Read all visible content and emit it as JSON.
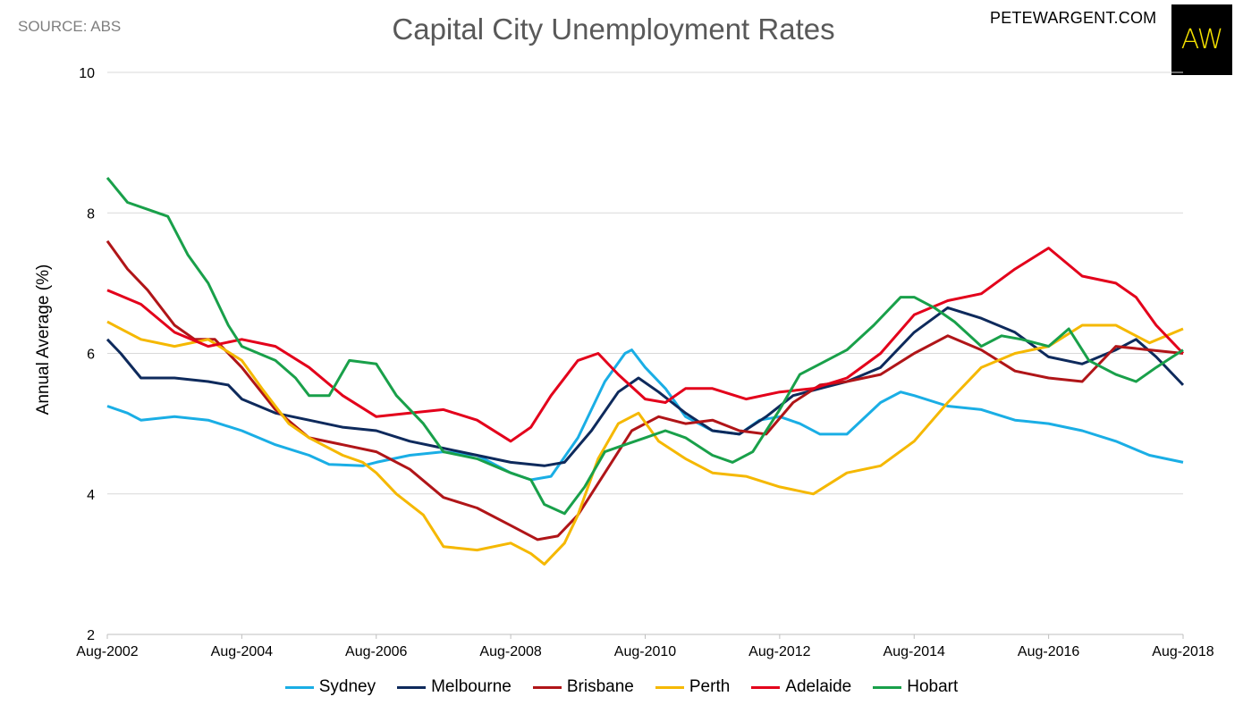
{
  "header": {
    "source": "SOURCE: ABS",
    "title": "Capital City Unemployment Rates",
    "site": "PETEWARGENT.COM",
    "logo_text": "AW"
  },
  "chart_data": {
    "type": "line",
    "title": "Capital City Unemployment Rates",
    "ylabel": "Annual Average (%)",
    "xlabel": "",
    "ylim": [
      2,
      10
    ],
    "yticks": [
      2,
      4,
      6,
      8,
      10
    ],
    "xlim": [
      0,
      16
    ],
    "x_tick_labels": [
      "Aug-2002",
      "Aug-2004",
      "Aug-2006",
      "Aug-2008",
      "Aug-2010",
      "Aug-2012",
      "Aug-2014",
      "Aug-2016",
      "Aug-2018"
    ],
    "x_tick_years": [
      0,
      2,
      4,
      6,
      8,
      10,
      12,
      14,
      16
    ],
    "grid": true,
    "legend_position": "bottom",
    "x_unit_note": "years since Aug-2002",
    "series": [
      {
        "name": "Sydney",
        "color": "#1aaee5",
        "points": [
          [
            0,
            5.25
          ],
          [
            0.3,
            5.15
          ],
          [
            0.5,
            5.05
          ],
          [
            1,
            5.1
          ],
          [
            1.5,
            5.05
          ],
          [
            2,
            4.9
          ],
          [
            2.5,
            4.7
          ],
          [
            3,
            4.55
          ],
          [
            3.3,
            4.42
          ],
          [
            3.8,
            4.4
          ],
          [
            4,
            4.45
          ],
          [
            4.5,
            4.55
          ],
          [
            5,
            4.6
          ],
          [
            5.5,
            4.55
          ],
          [
            6,
            4.3
          ],
          [
            6.3,
            4.2
          ],
          [
            6.6,
            4.25
          ],
          [
            7,
            4.8
          ],
          [
            7.4,
            5.6
          ],
          [
            7.7,
            6.0
          ],
          [
            7.8,
            6.05
          ],
          [
            8,
            5.8
          ],
          [
            8.3,
            5.5
          ],
          [
            8.6,
            5.1
          ],
          [
            9,
            4.9
          ],
          [
            9.4,
            4.85
          ],
          [
            9.7,
            5.05
          ],
          [
            10,
            5.1
          ],
          [
            10.3,
            5.0
          ],
          [
            10.6,
            4.85
          ],
          [
            11,
            4.85
          ],
          [
            11.5,
            5.3
          ],
          [
            11.8,
            5.45
          ],
          [
            12,
            5.4
          ],
          [
            12.5,
            5.25
          ],
          [
            13,
            5.2
          ],
          [
            13.5,
            5.05
          ],
          [
            14,
            5.0
          ],
          [
            14.5,
            4.9
          ],
          [
            15,
            4.75
          ],
          [
            15.5,
            4.55
          ],
          [
            16,
            4.45
          ]
        ]
      },
      {
        "name": "Melbourne",
        "color": "#0e2a5c",
        "points": [
          [
            0,
            6.2
          ],
          [
            0.2,
            6.0
          ],
          [
            0.5,
            5.65
          ],
          [
            1,
            5.65
          ],
          [
            1.5,
            5.6
          ],
          [
            1.8,
            5.55
          ],
          [
            2,
            5.35
          ],
          [
            2.5,
            5.15
          ],
          [
            3,
            5.05
          ],
          [
            3.5,
            4.95
          ],
          [
            4,
            4.9
          ],
          [
            4.5,
            4.75
          ],
          [
            5,
            4.65
          ],
          [
            5.5,
            4.55
          ],
          [
            6,
            4.45
          ],
          [
            6.5,
            4.4
          ],
          [
            6.8,
            4.45
          ],
          [
            7.2,
            4.9
          ],
          [
            7.6,
            5.45
          ],
          [
            7.9,
            5.65
          ],
          [
            8.2,
            5.45
          ],
          [
            8.6,
            5.15
          ],
          [
            9,
            4.9
          ],
          [
            9.4,
            4.85
          ],
          [
            9.8,
            5.1
          ],
          [
            10.2,
            5.4
          ],
          [
            10.6,
            5.5
          ],
          [
            11,
            5.6
          ],
          [
            11.5,
            5.8
          ],
          [
            12,
            6.3
          ],
          [
            12.5,
            6.65
          ],
          [
            13,
            6.5
          ],
          [
            13.5,
            6.3
          ],
          [
            14,
            5.95
          ],
          [
            14.5,
            5.85
          ],
          [
            15,
            6.05
          ],
          [
            15.3,
            6.2
          ],
          [
            15.6,
            5.95
          ],
          [
            16,
            5.55
          ]
        ]
      },
      {
        "name": "Brisbane",
        "color": "#b01518",
        "points": [
          [
            0,
            7.6
          ],
          [
            0.3,
            7.2
          ],
          [
            0.6,
            6.9
          ],
          [
            1,
            6.4
          ],
          [
            1.3,
            6.2
          ],
          [
            1.6,
            6.2
          ],
          [
            2,
            5.8
          ],
          [
            2.5,
            5.2
          ],
          [
            3,
            4.8
          ],
          [
            3.5,
            4.7
          ],
          [
            4,
            4.6
          ],
          [
            4.5,
            4.35
          ],
          [
            5,
            3.95
          ],
          [
            5.5,
            3.8
          ],
          [
            6,
            3.55
          ],
          [
            6.4,
            3.35
          ],
          [
            6.7,
            3.4
          ],
          [
            7,
            3.7
          ],
          [
            7.4,
            4.3
          ],
          [
            7.8,
            4.9
          ],
          [
            8.2,
            5.1
          ],
          [
            8.6,
            5.0
          ],
          [
            9,
            5.05
          ],
          [
            9.4,
            4.9
          ],
          [
            9.8,
            4.85
          ],
          [
            10.2,
            5.3
          ],
          [
            10.6,
            5.55
          ],
          [
            11,
            5.6
          ],
          [
            11.5,
            5.7
          ],
          [
            12,
            6.0
          ],
          [
            12.5,
            6.25
          ],
          [
            13,
            6.05
          ],
          [
            13.5,
            5.75
          ],
          [
            14,
            5.65
          ],
          [
            14.5,
            5.6
          ],
          [
            15,
            6.1
          ],
          [
            15.5,
            6.05
          ],
          [
            16,
            6.0
          ]
        ]
      },
      {
        "name": "Perth",
        "color": "#f5b800",
        "points": [
          [
            0,
            6.45
          ],
          [
            0.5,
            6.2
          ],
          [
            1,
            6.1
          ],
          [
            1.5,
            6.2
          ],
          [
            2,
            5.9
          ],
          [
            2.3,
            5.5
          ],
          [
            2.7,
            5.0
          ],
          [
            3,
            4.8
          ],
          [
            3.5,
            4.55
          ],
          [
            3.8,
            4.45
          ],
          [
            4,
            4.3
          ],
          [
            4.3,
            4.0
          ],
          [
            4.7,
            3.7
          ],
          [
            5,
            3.25
          ],
          [
            5.5,
            3.2
          ],
          [
            6,
            3.3
          ],
          [
            6.3,
            3.15
          ],
          [
            6.5,
            3.0
          ],
          [
            6.8,
            3.3
          ],
          [
            7,
            3.7
          ],
          [
            7.3,
            4.5
          ],
          [
            7.6,
            5.0
          ],
          [
            7.9,
            5.15
          ],
          [
            8.2,
            4.75
          ],
          [
            8.6,
            4.5
          ],
          [
            9,
            4.3
          ],
          [
            9.5,
            4.25
          ],
          [
            10,
            4.1
          ],
          [
            10.5,
            4.0
          ],
          [
            11,
            4.3
          ],
          [
            11.5,
            4.4
          ],
          [
            12,
            4.75
          ],
          [
            12.5,
            5.3
          ],
          [
            13,
            5.8
          ],
          [
            13.5,
            6.0
          ],
          [
            14,
            6.1
          ],
          [
            14.5,
            6.4
          ],
          [
            15,
            6.4
          ],
          [
            15.5,
            6.15
          ],
          [
            16,
            6.35
          ]
        ]
      },
      {
        "name": "Adelaide",
        "color": "#e3001b",
        "points": [
          [
            0,
            6.9
          ],
          [
            0.5,
            6.7
          ],
          [
            1,
            6.3
          ],
          [
            1.5,
            6.1
          ],
          [
            2,
            6.2
          ],
          [
            2.5,
            6.1
          ],
          [
            3,
            5.8
          ],
          [
            3.5,
            5.4
          ],
          [
            4,
            5.1
          ],
          [
            4.5,
            5.15
          ],
          [
            5,
            5.2
          ],
          [
            5.5,
            5.05
          ],
          [
            6,
            4.75
          ],
          [
            6.3,
            4.95
          ],
          [
            6.6,
            5.4
          ],
          [
            7,
            5.9
          ],
          [
            7.3,
            6.0
          ],
          [
            7.6,
            5.7
          ],
          [
            8,
            5.35
          ],
          [
            8.3,
            5.3
          ],
          [
            8.6,
            5.5
          ],
          [
            9,
            5.5
          ],
          [
            9.5,
            5.35
          ],
          [
            10,
            5.45
          ],
          [
            10.5,
            5.5
          ],
          [
            11,
            5.65
          ],
          [
            11.5,
            6.0
          ],
          [
            12,
            6.55
          ],
          [
            12.5,
            6.75
          ],
          [
            13,
            6.85
          ],
          [
            13.5,
            7.2
          ],
          [
            14,
            7.5
          ],
          [
            14.5,
            7.1
          ],
          [
            15,
            7.0
          ],
          [
            15.3,
            6.8
          ],
          [
            15.6,
            6.4
          ],
          [
            16,
            6.0
          ]
        ]
      },
      {
        "name": "Hobart",
        "color": "#19a04a",
        "points": [
          [
            0,
            8.5
          ],
          [
            0.3,
            8.15
          ],
          [
            0.6,
            8.05
          ],
          [
            0.9,
            7.95
          ],
          [
            1.2,
            7.4
          ],
          [
            1.5,
            7.0
          ],
          [
            1.8,
            6.4
          ],
          [
            2,
            6.1
          ],
          [
            2.5,
            5.9
          ],
          [
            2.8,
            5.65
          ],
          [
            3,
            5.4
          ],
          [
            3.3,
            5.4
          ],
          [
            3.6,
            5.9
          ],
          [
            4,
            5.85
          ],
          [
            4.3,
            5.4
          ],
          [
            4.7,
            5.0
          ],
          [
            5,
            4.6
          ],
          [
            5.5,
            4.5
          ],
          [
            6,
            4.3
          ],
          [
            6.3,
            4.2
          ],
          [
            6.5,
            3.85
          ],
          [
            6.8,
            3.72
          ],
          [
            7.1,
            4.1
          ],
          [
            7.4,
            4.6
          ],
          [
            7.7,
            4.7
          ],
          [
            8,
            4.8
          ],
          [
            8.3,
            4.9
          ],
          [
            8.6,
            4.8
          ],
          [
            9,
            4.55
          ],
          [
            9.3,
            4.45
          ],
          [
            9.6,
            4.6
          ],
          [
            10,
            5.2
          ],
          [
            10.3,
            5.7
          ],
          [
            10.6,
            5.85
          ],
          [
            11,
            6.05
          ],
          [
            11.4,
            6.4
          ],
          [
            11.8,
            6.8
          ],
          [
            12,
            6.8
          ],
          [
            12.3,
            6.65
          ],
          [
            12.6,
            6.45
          ],
          [
            13,
            6.1
          ],
          [
            13.3,
            6.25
          ],
          [
            13.6,
            6.2
          ],
          [
            14,
            6.1
          ],
          [
            14.3,
            6.35
          ],
          [
            14.6,
            5.9
          ],
          [
            15,
            5.7
          ],
          [
            15.3,
            5.6
          ],
          [
            15.6,
            5.8
          ],
          [
            16,
            6.05
          ]
        ]
      }
    ]
  }
}
